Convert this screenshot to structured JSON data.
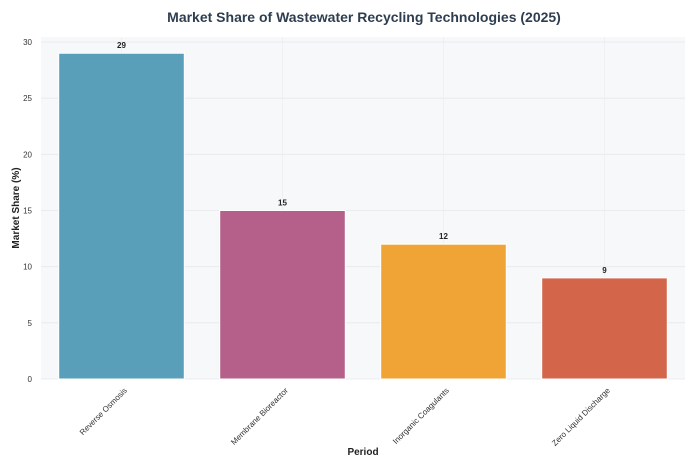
{
  "chart_data": {
    "type": "bar",
    "title": "Market Share of Wastewater Recycling Technologies (2025)",
    "xlabel": "Period",
    "ylabel": "Market Share (%)",
    "categories": [
      "Reverse Osmosis",
      "Membrane Bioreactor",
      "Inorganic Coagulants",
      "Zero Liquid Discharge"
    ],
    "values": [
      29,
      15,
      12,
      9
    ],
    "colors": [
      "#5a9fba",
      "#b4608a",
      "#f0a436",
      "#d3654b"
    ],
    "ylim": [
      0,
      30
    ],
    "yticks": [
      0,
      5,
      10,
      15,
      20,
      25,
      30
    ],
    "grid": true,
    "legend": "none",
    "plot_background": "#f7f8fa"
  }
}
